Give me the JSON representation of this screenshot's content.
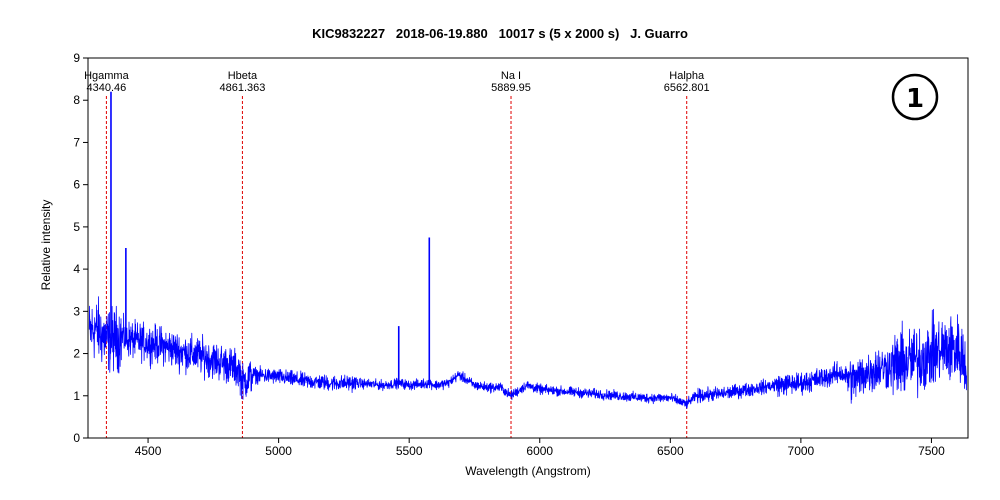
{
  "chart_data": {
    "type": "line",
    "title": "KIC9832227   2018-06-19.880   10017 s (5 x 2000 s)   J. Guarro",
    "xlabel": "Wavelength (Angstrom)",
    "ylabel": "Relative intensity",
    "xlim": [
      4270,
      7640
    ],
    "ylim": [
      0,
      9
    ],
    "xticks": [
      "4500",
      "5000",
      "5500",
      "6000",
      "6500",
      "7000",
      "7500"
    ],
    "yticks": [
      "0",
      "1",
      "2",
      "3",
      "4",
      "5",
      "6",
      "7",
      "8",
      "9"
    ],
    "grid": false,
    "series": [
      {
        "color": "#0000ff",
        "x": [
          4275,
          4300,
          4330,
          4350,
          4400,
          4450,
          4500,
          4550,
          4600,
          4650,
          4700,
          4750,
          4800,
          4850,
          4861,
          4900,
          5000,
          5100,
          5200,
          5300,
          5400,
          5460,
          5500,
          5577,
          5600,
          5650,
          5690,
          5750,
          5800,
          5850,
          5889,
          5950,
          6000,
          6100,
          6200,
          6300,
          6400,
          6500,
          6562,
          6600,
          6700,
          6800,
          6900,
          7000,
          7100,
          7150,
          7200,
          7250,
          7300,
          7350,
          7400,
          7450,
          7500,
          7550,
          7600,
          7630
        ],
        "y": [
          2.5,
          2.6,
          2.4,
          2.3,
          2.4,
          2.3,
          2.25,
          2.2,
          2.1,
          2.0,
          1.95,
          1.85,
          1.75,
          1.6,
          1.3,
          1.5,
          1.45,
          1.35,
          1.3,
          1.3,
          1.25,
          1.3,
          1.25,
          1.3,
          1.25,
          1.3,
          1.5,
          1.25,
          1.2,
          1.2,
          1.0,
          1.25,
          1.15,
          1.1,
          1.05,
          1.0,
          0.95,
          0.95,
          0.8,
          1.0,
          1.05,
          1.15,
          1.25,
          1.3,
          1.45,
          1.55,
          1.35,
          1.55,
          1.65,
          1.7,
          1.8,
          1.85,
          2.0,
          2.1,
          2.1,
          1.8
        ]
      }
    ],
    "spikes": [
      {
        "x": 4358,
        "y": 8.2
      },
      {
        "x": 4415,
        "y": 4.5
      },
      {
        "x": 5460,
        "y": 2.65
      },
      {
        "x": 5577,
        "y": 4.75
      }
    ],
    "reference_lines": [
      {
        "name": "Hgamma",
        "wavelength": "4340.46",
        "x": 4340.46
      },
      {
        "name": "Hbeta",
        "wavelength": "4861.363",
        "x": 4861.363
      },
      {
        "name": "Na I",
        "wavelength": "5889.95",
        "x": 5889.95
      },
      {
        "name": "Halpha",
        "wavelength": "6562.801",
        "x": 6562.801
      }
    ],
    "badge": "1"
  }
}
